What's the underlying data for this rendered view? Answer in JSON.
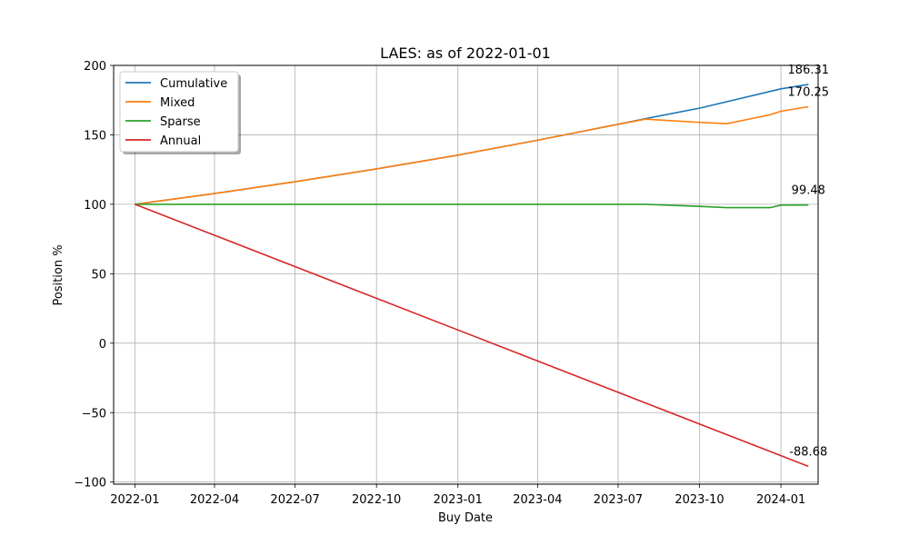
{
  "chart_data": {
    "type": "line",
    "title": "LAES: as of 2022-01-01",
    "xlabel": "Buy Date",
    "ylabel": "Position %",
    "x_ticks": [
      "2022-01",
      "2022-04",
      "2022-07",
      "2022-10",
      "2023-01",
      "2023-04",
      "2023-07",
      "2023-10",
      "2024-01"
    ],
    "y_ticks": [
      "−100",
      "−50",
      "0",
      "50",
      "100",
      "150",
      "200"
    ],
    "xlim": [
      "2021-12-08",
      "2024-02-12"
    ],
    "ylim": [
      -101.5,
      200
    ],
    "grid": true,
    "legend_position": "upper-left",
    "series": [
      {
        "name": "Cumulative",
        "color": "#1f77b4",
        "end_label": "186.31",
        "points": [
          [
            "2022-01-01",
            100.0
          ],
          [
            "2022-04-01",
            107.7
          ],
          [
            "2022-07-01",
            116.2
          ],
          [
            "2022-10-01",
            125.5
          ],
          [
            "2023-01-01",
            135.4
          ],
          [
            "2023-04-01",
            146.1
          ],
          [
            "2023-07-01",
            157.6
          ],
          [
            "2023-08-01",
            161.7
          ],
          [
            "2023-10-01",
            169.2
          ],
          [
            "2024-01-01",
            183.1
          ],
          [
            "2024-02-01",
            186.31
          ]
        ]
      },
      {
        "name": "Mixed",
        "color": "#ff7f0e",
        "end_label": "170.25",
        "points": [
          [
            "2022-01-01",
            100.0
          ],
          [
            "2022-04-01",
            107.7
          ],
          [
            "2022-07-01",
            116.2
          ],
          [
            "2022-10-01",
            125.5
          ],
          [
            "2023-01-01",
            135.4
          ],
          [
            "2023-04-01",
            146.1
          ],
          [
            "2023-07-01",
            157.6
          ],
          [
            "2023-08-01",
            161.3
          ],
          [
            "2023-10-01",
            159.0
          ],
          [
            "2023-11-01",
            158.0
          ],
          [
            "2023-12-01",
            162.0
          ],
          [
            "2023-12-20",
            164.5
          ],
          [
            "2024-01-01",
            167.0
          ],
          [
            "2024-02-01",
            170.25
          ]
        ]
      },
      {
        "name": "Sparse",
        "color": "#2ca02c",
        "end_label": "99.48",
        "points": [
          [
            "2022-01-01",
            100.0
          ],
          [
            "2023-08-01",
            100.0
          ],
          [
            "2023-10-01",
            98.5
          ],
          [
            "2023-11-01",
            97.6
          ],
          [
            "2023-12-20",
            97.6
          ],
          [
            "2024-01-01",
            99.4
          ],
          [
            "2024-02-01",
            99.48
          ]
        ]
      },
      {
        "name": "Annual",
        "color": "#d62728",
        "end_label": "-88.68",
        "points": [
          [
            "2022-01-01",
            100.0
          ],
          [
            "2024-02-01",
            -88.68
          ]
        ]
      }
    ]
  }
}
